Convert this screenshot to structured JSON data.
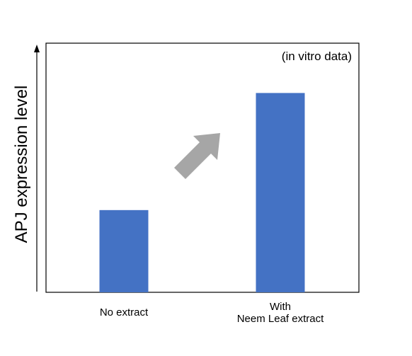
{
  "chart_data": {
    "type": "bar",
    "categories": [
      [
        "No extract"
      ],
      [
        "With",
        "Neem Leaf extract"
      ]
    ],
    "values": [
      0.33,
      0.8
    ],
    "ylabel": "APJ expression level",
    "annotation": "(in vitro data)",
    "ylim": [
      0,
      1
    ],
    "y_tick_labels_shown": false,
    "grid": false,
    "legend": "none",
    "colors": {
      "bar": "#4472C4",
      "arrow": "#A6A6A6",
      "axis": "#000000",
      "text": "#000000"
    },
    "decorations": {
      "trend_arrow": "up-right",
      "y_axis_arrow": true
    }
  }
}
